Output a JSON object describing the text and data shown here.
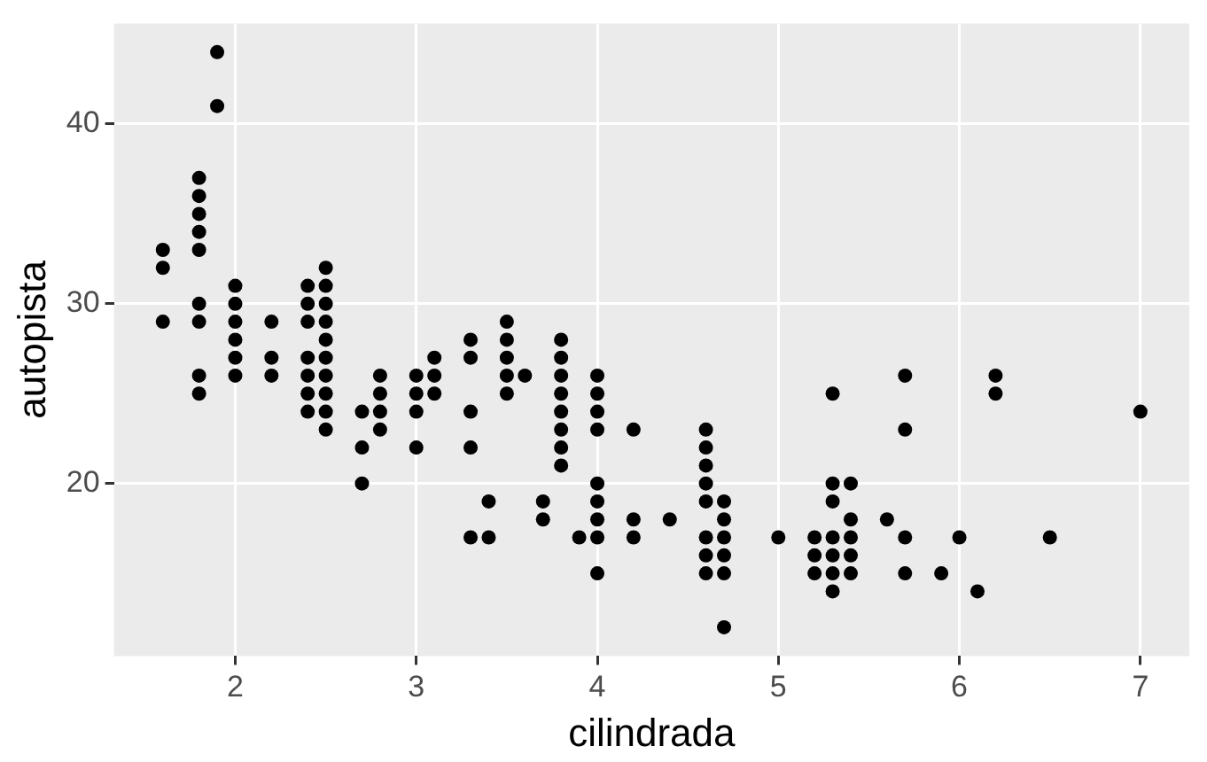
{
  "chart_data": {
    "type": "scatter",
    "xlabel": "cilindrada",
    "ylabel": "autopista",
    "series": [
      {
        "color": "#000000",
        "x": [
          1.6,
          1.6,
          1.6,
          1.8,
          1.8,
          1.8,
          1.8,
          1.8,
          1.8,
          1.8,
          1.8,
          1.8,
          1.9,
          1.9,
          2.0,
          2.0,
          2.0,
          2.0,
          2.0,
          2.0,
          2.2,
          2.2,
          2.2,
          2.4,
          2.4,
          2.4,
          2.4,
          2.4,
          2.4,
          2.4,
          2.5,
          2.5,
          2.5,
          2.5,
          2.5,
          2.5,
          2.5,
          2.5,
          2.5,
          2.5,
          2.7,
          2.7,
          2.7,
          2.8,
          2.8,
          2.8,
          2.8,
          3.0,
          3.0,
          3.0,
          3.0,
          3.1,
          3.1,
          3.1,
          3.3,
          3.3,
          3.3,
          3.3,
          3.3,
          3.4,
          3.4,
          3.5,
          3.5,
          3.5,
          3.5,
          3.5,
          3.6,
          3.7,
          3.7,
          3.8,
          3.8,
          3.8,
          3.8,
          3.8,
          3.8,
          3.8,
          3.8,
          3.9,
          4.0,
          4.0,
          4.0,
          4.0,
          4.0,
          4.0,
          4.0,
          4.0,
          4.0,
          4.2,
          4.2,
          4.2,
          4.4,
          4.6,
          4.6,
          4.6,
          4.6,
          4.6,
          4.6,
          4.6,
          4.6,
          4.7,
          4.7,
          4.7,
          4.7,
          4.7,
          4.7,
          5.0,
          5.2,
          5.2,
          5.2,
          5.3,
          5.3,
          5.3,
          5.3,
          5.3,
          5.3,
          5.3,
          5.4,
          5.4,
          5.4,
          5.4,
          5.4,
          5.6,
          5.7,
          5.7,
          5.7,
          5.7,
          5.9,
          6.0,
          6.1,
          6.2,
          6.2,
          6.5,
          7.0
        ],
        "values": [
          29,
          32,
          33,
          25,
          26,
          29,
          30,
          33,
          34,
          35,
          36,
          37,
          41,
          44,
          26,
          27,
          28,
          29,
          30,
          31,
          26,
          27,
          29,
          24,
          25,
          26,
          27,
          29,
          30,
          31,
          23,
          24,
          25,
          26,
          27,
          28,
          29,
          30,
          31,
          32,
          20,
          22,
          24,
          23,
          24,
          25,
          26,
          22,
          24,
          25,
          26,
          25,
          26,
          27,
          17,
          22,
          24,
          27,
          28,
          17,
          19,
          25,
          26,
          27,
          28,
          29,
          26,
          18,
          19,
          21,
          22,
          23,
          24,
          25,
          26,
          27,
          28,
          17,
          15,
          17,
          18,
          19,
          20,
          23,
          24,
          25,
          26,
          17,
          18,
          23,
          18,
          15,
          16,
          17,
          19,
          20,
          21,
          22,
          23,
          12,
          15,
          16,
          17,
          18,
          19,
          17,
          15,
          16,
          17,
          14,
          15,
          16,
          17,
          19,
          20,
          25,
          15,
          16,
          17,
          18,
          20,
          18,
          15,
          17,
          23,
          26,
          15,
          17,
          14,
          25,
          26,
          17,
          24
        ]
      }
    ],
    "xlim": [
      1.33,
      7.27
    ],
    "ylim": [
      10.4,
      45.6
    ],
    "xticks": [
      2,
      3,
      4,
      5,
      6,
      7
    ],
    "yticks": [
      20,
      30,
      40
    ],
    "grid": true,
    "marker": "circle"
  }
}
